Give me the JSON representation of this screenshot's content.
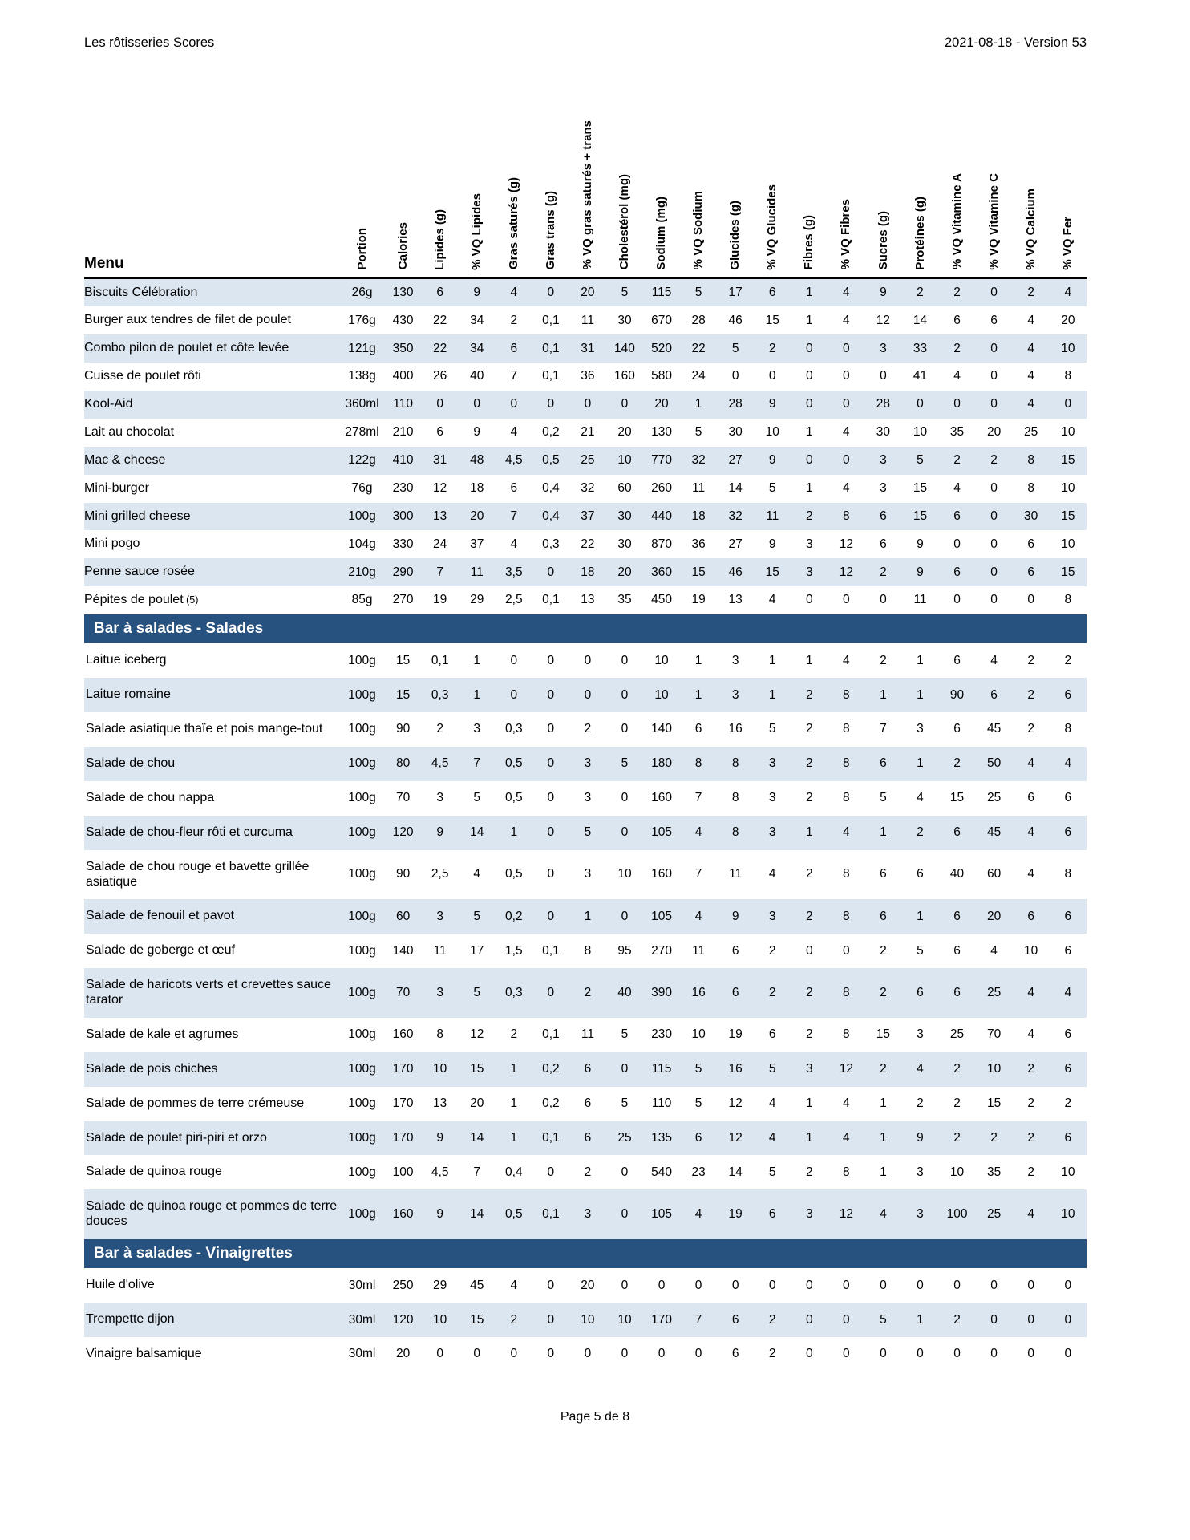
{
  "header": {
    "left": "Les rôtisseries Scores",
    "right": "2021-08-18 - Version 53"
  },
  "colors": {
    "section_header_bg": "#27517E",
    "shaded_row_bg": "#DCE6F1",
    "section_header_text": "#FFFFFF"
  },
  "table": {
    "menu_header": "Menu",
    "columns": [
      "Portion",
      "Calories",
      "Lipides (g)",
      "% VQ Lipides",
      "Gras saturés (g)",
      "Gras trans (g)",
      "% VQ gras saturés + trans",
      "Cholestérol (mg)",
      "Sodium (mg)",
      "% VQ Sodium",
      "Glucides (g)",
      "% VQ Glucides",
      "Fibres (g)",
      "% VQ Fibres",
      "Sucres (g)",
      "Protéines (g)",
      "% VQ Vitamine A",
      "% VQ Vitamine C",
      "% VQ Calcium",
      "% VQ Fer"
    ],
    "sections": [
      {
        "title": "",
        "rows": [
          {
            "name": "Biscuits Célébration",
            "values": [
              "26g",
              "130",
              "6",
              "9",
              "4",
              "0",
              "20",
              "5",
              "115",
              "5",
              "17",
              "6",
              "1",
              "4",
              "9",
              "2",
              "2",
              "0",
              "2",
              "4"
            ]
          },
          {
            "name": "Burger aux tendres de filet de poulet",
            "values": [
              "176g",
              "430",
              "22",
              "34",
              "2",
              "0,1",
              "11",
              "30",
              "670",
              "28",
              "46",
              "15",
              "1",
              "4",
              "12",
              "14",
              "6",
              "6",
              "4",
              "20"
            ]
          },
          {
            "name": "Combo pilon de poulet et côte levée",
            "values": [
              "121g",
              "350",
              "22",
              "34",
              "6",
              "0,1",
              "31",
              "140",
              "520",
              "22",
              "5",
              "2",
              "0",
              "0",
              "3",
              "33",
              "2",
              "0",
              "4",
              "10"
            ]
          },
          {
            "name": "Cuisse de poulet rôti",
            "values": [
              "138g",
              "400",
              "26",
              "40",
              "7",
              "0,1",
              "36",
              "160",
              "580",
              "24",
              "0",
              "0",
              "0",
              "0",
              "0",
              "41",
              "4",
              "0",
              "4",
              "8"
            ]
          },
          {
            "name": "Kool-Aid",
            "values": [
              "360ml",
              "110",
              "0",
              "0",
              "0",
              "0",
              "0",
              "0",
              "20",
              "1",
              "28",
              "9",
              "0",
              "0",
              "28",
              "0",
              "0",
              "0",
              "4",
              "0"
            ]
          },
          {
            "name": "Lait au chocolat",
            "values": [
              "278ml",
              "210",
              "6",
              "9",
              "4",
              "0,2",
              "21",
              "20",
              "130",
              "5",
              "30",
              "10",
              "1",
              "4",
              "30",
              "10",
              "35",
              "20",
              "25",
              "10"
            ]
          },
          {
            "name": "Mac & cheese",
            "values": [
              "122g",
              "410",
              "31",
              "48",
              "4,5",
              "0,5",
              "25",
              "10",
              "770",
              "32",
              "27",
              "9",
              "0",
              "0",
              "3",
              "5",
              "2",
              "2",
              "8",
              "15"
            ]
          },
          {
            "name": "Mini-burger",
            "values": [
              "76g",
              "230",
              "12",
              "18",
              "6",
              "0,4",
              "32",
              "60",
              "260",
              "11",
              "14",
              "5",
              "1",
              "4",
              "3",
              "15",
              "4",
              "0",
              "8",
              "10"
            ]
          },
          {
            "name": "Mini grilled cheese",
            "values": [
              "100g",
              "300",
              "13",
              "20",
              "7",
              "0,4",
              "37",
              "30",
              "440",
              "18",
              "32",
              "11",
              "2",
              "8",
              "6",
              "15",
              "6",
              "0",
              "30",
              "15"
            ]
          },
          {
            "name": "Mini pogo",
            "values": [
              "104g",
              "330",
              "24",
              "37",
              "4",
              "0,3",
              "22",
              "30",
              "870",
              "36",
              "27",
              "9",
              "3",
              "12",
              "6",
              "9",
              "0",
              "0",
              "6",
              "10"
            ]
          },
          {
            "name": "Penne sauce rosée",
            "values": [
              "210g",
              "290",
              "7",
              "11",
              "3,5",
              "0",
              "18",
              "20",
              "360",
              "15",
              "46",
              "15",
              "3",
              "12",
              "2",
              "9",
              "6",
              "0",
              "6",
              "15"
            ]
          },
          {
            "name": "Pépites de poulet",
            "note": "(5)",
            "values": [
              "85g",
              "270",
              "19",
              "29",
              "2,5",
              "0,1",
              "13",
              "35",
              "450",
              "19",
              "13",
              "4",
              "0",
              "0",
              "0",
              "11",
              "0",
              "0",
              "0",
              "8"
            ]
          }
        ]
      },
      {
        "title": "Bar à salades - Salades",
        "rows": [
          {
            "name": "Laitue iceberg",
            "values": [
              "100g",
              "15",
              "0,1",
              "1",
              "0",
              "0",
              "0",
              "0",
              "10",
              "1",
              "3",
              "1",
              "1",
              "4",
              "2",
              "1",
              "6",
              "4",
              "2",
              "2"
            ]
          },
          {
            "name": "Laitue romaine",
            "values": [
              "100g",
              "15",
              "0,3",
              "1",
              "0",
              "0",
              "0",
              "0",
              "10",
              "1",
              "3",
              "1",
              "2",
              "8",
              "1",
              "1",
              "90",
              "6",
              "2",
              "6"
            ]
          },
          {
            "name": "Salade asiatique thaïe et pois mange-tout",
            "values": [
              "100g",
              "90",
              "2",
              "3",
              "0,3",
              "0",
              "2",
              "0",
              "140",
              "6",
              "16",
              "5",
              "2",
              "8",
              "7",
              "3",
              "6",
              "45",
              "2",
              "8"
            ]
          },
          {
            "name": "Salade de chou",
            "values": [
              "100g",
              "80",
              "4,5",
              "7",
              "0,5",
              "0",
              "3",
              "5",
              "180",
              "8",
              "8",
              "3",
              "2",
              "8",
              "6",
              "1",
              "2",
              "50",
              "4",
              "4"
            ]
          },
          {
            "name": "Salade de chou nappa",
            "values": [
              "100g",
              "70",
              "3",
              "5",
              "0,5",
              "0",
              "3",
              "0",
              "160",
              "7",
              "8",
              "3",
              "2",
              "8",
              "5",
              "4",
              "15",
              "25",
              "6",
              "6"
            ]
          },
          {
            "name": "Salade de chou-fleur rôti et curcuma",
            "values": [
              "100g",
              "120",
              "9",
              "14",
              "1",
              "0",
              "5",
              "0",
              "105",
              "4",
              "8",
              "3",
              "1",
              "4",
              "1",
              "2",
              "6",
              "45",
              "4",
              "6"
            ]
          },
          {
            "name": "Salade de chou rouge et bavette grillée asiatique",
            "values": [
              "100g",
              "90",
              "2,5",
              "4",
              "0,5",
              "0",
              "3",
              "10",
              "160",
              "7",
              "11",
              "4",
              "2",
              "8",
              "6",
              "6",
              "40",
              "60",
              "4",
              "8"
            ]
          },
          {
            "name": "Salade de fenouil et pavot",
            "values": [
              "100g",
              "60",
              "3",
              "5",
              "0,2",
              "0",
              "1",
              "0",
              "105",
              "4",
              "9",
              "3",
              "2",
              "8",
              "6",
              "1",
              "6",
              "20",
              "6",
              "6"
            ]
          },
          {
            "name": "Salade de goberge et œuf",
            "values": [
              "100g",
              "140",
              "11",
              "17",
              "1,5",
              "0,1",
              "8",
              "95",
              "270",
              "11",
              "6",
              "2",
              "0",
              "0",
              "2",
              "5",
              "6",
              "4",
              "10",
              "6"
            ]
          },
          {
            "name": "Salade de haricots verts et crevettes sauce tarator",
            "values": [
              "100g",
              "70",
              "3",
              "5",
              "0,3",
              "0",
              "2",
              "40",
              "390",
              "16",
              "6",
              "2",
              "2",
              "8",
              "2",
              "6",
              "6",
              "25",
              "4",
              "4"
            ]
          },
          {
            "name": "Salade de kale et agrumes",
            "values": [
              "100g",
              "160",
              "8",
              "12",
              "2",
              "0,1",
              "11",
              "5",
              "230",
              "10",
              "19",
              "6",
              "2",
              "8",
              "15",
              "3",
              "25",
              "70",
              "4",
              "6"
            ]
          },
          {
            "name": "Salade de pois chiches",
            "values": [
              "100g",
              "170",
              "10",
              "15",
              "1",
              "0,2",
              "6",
              "0",
              "115",
              "5",
              "16",
              "5",
              "3",
              "12",
              "2",
              "4",
              "2",
              "10",
              "2",
              "6"
            ]
          },
          {
            "name": "Salade de pommes de terre crémeuse",
            "values": [
              "100g",
              "170",
              "13",
              "20",
              "1",
              "0,2",
              "6",
              "5",
              "110",
              "5",
              "12",
              "4",
              "1",
              "4",
              "1",
              "2",
              "2",
              "15",
              "2",
              "2"
            ]
          },
          {
            "name": "Salade de poulet piri-piri et orzo",
            "values": [
              "100g",
              "170",
              "9",
              "14",
              "1",
              "0,1",
              "6",
              "25",
              "135",
              "6",
              "12",
              "4",
              "1",
              "4",
              "1",
              "9",
              "2",
              "2",
              "2",
              "6"
            ]
          },
          {
            "name": "Salade de quinoa rouge",
            "values": [
              "100g",
              "100",
              "4,5",
              "7",
              "0,4",
              "0",
              "2",
              "0",
              "540",
              "23",
              "14",
              "5",
              "2",
              "8",
              "1",
              "3",
              "10",
              "35",
              "2",
              "10"
            ]
          },
          {
            "name": "Salade de quinoa rouge et pommes de terre douces",
            "values": [
              "100g",
              "160",
              "9",
              "14",
              "0,5",
              "0,1",
              "3",
              "0",
              "105",
              "4",
              "19",
              "6",
              "3",
              "12",
              "4",
              "3",
              "100",
              "25",
              "4",
              "10"
            ]
          }
        ]
      },
      {
        "title": "Bar à salades - Vinaigrettes",
        "rows": [
          {
            "name": "Huile d'olive",
            "values": [
              "30ml",
              "250",
              "29",
              "45",
              "4",
              "0",
              "20",
              "0",
              "0",
              "0",
              "0",
              "0",
              "0",
              "0",
              "0",
              "0",
              "0",
              "0",
              "0",
              "0"
            ]
          },
          {
            "name": "Trempette dijon",
            "values": [
              "30ml",
              "120",
              "10",
              "15",
              "2",
              "0",
              "10",
              "10",
              "170",
              "7",
              "6",
              "2",
              "0",
              "0",
              "5",
              "1",
              "2",
              "0",
              "0",
              "0"
            ]
          },
          {
            "name": "Vinaigre balsamique",
            "values": [
              "30ml",
              "20",
              "0",
              "0",
              "0",
              "0",
              "0",
              "0",
              "0",
              "0",
              "6",
              "2",
              "0",
              "0",
              "0",
              "0",
              "0",
              "0",
              "0",
              "0"
            ]
          }
        ]
      }
    ]
  },
  "footer": {
    "page": "Page 5 de 8"
  }
}
